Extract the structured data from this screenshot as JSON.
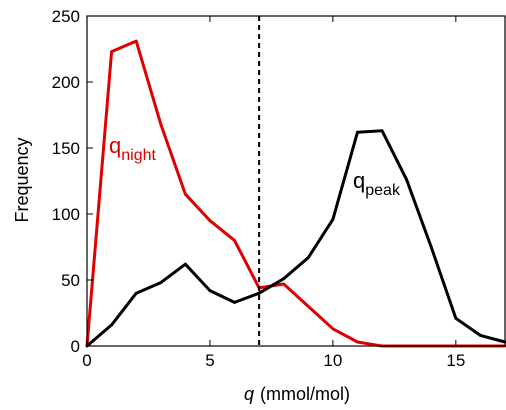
{
  "chart_data": {
    "type": "line",
    "title": "",
    "xlabel_var": "q",
    "xlabel_unit": "(mmol/mol)",
    "ylabel": "Frequency",
    "xlim": [
      0,
      17
    ],
    "ylim": [
      0,
      250
    ],
    "xticks": [
      0,
      5,
      10,
      15
    ],
    "yticks": [
      0,
      50,
      100,
      150,
      200,
      250
    ],
    "grid": false,
    "reference_line": {
      "x": 7.0,
      "style": "dashed",
      "color": "#000000"
    },
    "series": [
      {
        "name": "q_night",
        "label_base": "q",
        "label_sub": "night",
        "color": "#e00000",
        "x": [
          0,
          1,
          2,
          3,
          4,
          5,
          6,
          7,
          8,
          9,
          10,
          11,
          12,
          13,
          14,
          15,
          16,
          17
        ],
        "values": [
          0,
          223,
          231,
          168,
          115,
          95,
          80,
          44,
          47,
          30,
          13,
          3,
          0,
          0,
          0,
          0,
          0,
          0
        ]
      },
      {
        "name": "q_peak",
        "label_base": "q",
        "label_sub": "peak",
        "color": "#000000",
        "x": [
          0,
          1,
          2,
          3,
          4,
          5,
          6,
          7,
          8,
          9,
          10,
          11,
          12,
          13,
          14,
          15,
          16,
          17
        ],
        "values": [
          0,
          16,
          40,
          48,
          62,
          42,
          33,
          40,
          51,
          67,
          96,
          162,
          163,
          126,
          75,
          21,
          8,
          3
        ]
      }
    ]
  }
}
